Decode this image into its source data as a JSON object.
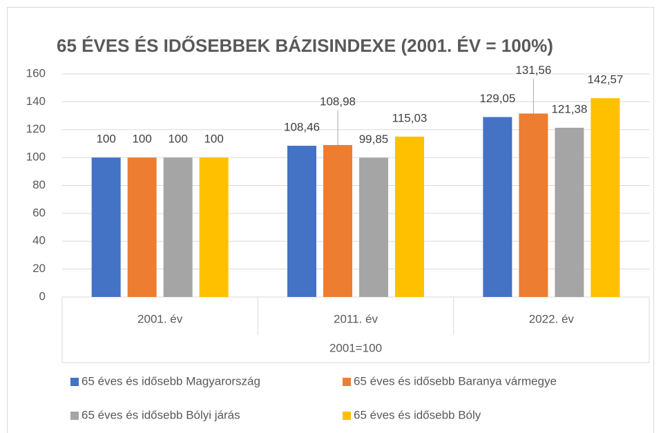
{
  "chart_data": {
    "type": "bar",
    "title": "65 ÉVES ÉS IDŐSEBBEK BÁZISINDEXE (2001. ÉV = 100%)",
    "x_label": "2001=100",
    "categories": [
      "2001. év",
      "2011. év",
      "2022. év"
    ],
    "series": [
      {
        "name": "65 éves és idősebb Magyarország",
        "color": "#4472c4",
        "values": [
          100,
          108.46,
          129.05
        ],
        "value_labels": [
          "100",
          "108,46",
          "129,05"
        ]
      },
      {
        "name": "65 éves és idősebb Baranya vármegye",
        "color": "#ed7d31",
        "values": [
          100,
          108.98,
          131.56
        ],
        "value_labels": [
          "100",
          "108,98",
          "131,56"
        ]
      },
      {
        "name": "65 éves és idősebb Bólyi járás",
        "color": "#a5a5a5",
        "values": [
          100,
          99.85,
          121.38
        ],
        "value_labels": [
          "100",
          "99,85",
          "121,38"
        ]
      },
      {
        "name": "65 éves és idősebb Bóly",
        "color": "#ffc000",
        "values": [
          100,
          115.03,
          142.57
        ],
        "value_labels": [
          "100",
          "115,03",
          "142,57"
        ]
      }
    ],
    "ylim": [
      0,
      160
    ],
    "yticks": [
      0,
      20,
      40,
      60,
      80,
      100,
      120,
      140,
      160
    ],
    "grid": true
  }
}
